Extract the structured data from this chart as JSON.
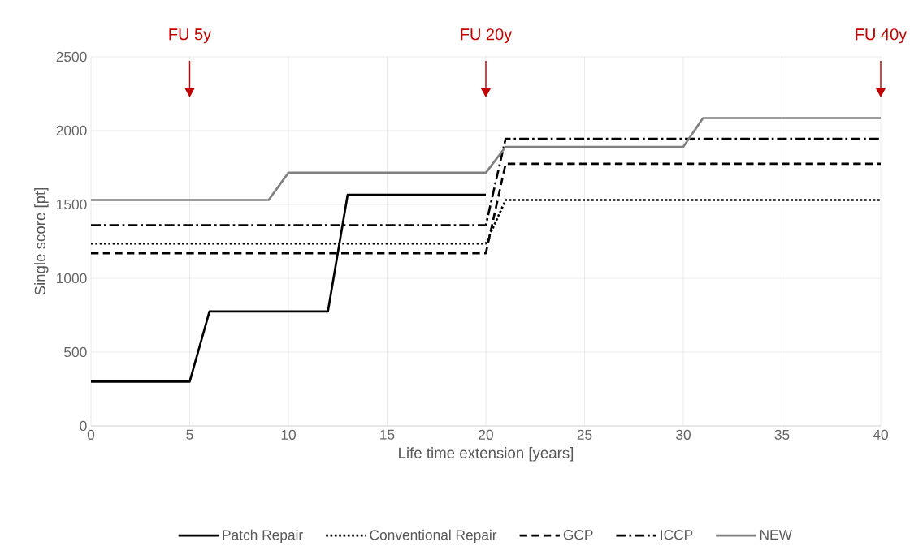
{
  "chart_data": {
    "type": "line",
    "xlabel": "Life time extension [years]",
    "ylabel": "Single score [pt]",
    "xlim": [
      0,
      40
    ],
    "ylim": [
      0,
      2500
    ],
    "xticks": [
      0,
      5,
      10,
      15,
      20,
      25,
      30,
      35,
      40
    ],
    "yticks": [
      0,
      500,
      1000,
      1500,
      2000,
      2500
    ],
    "grid": true,
    "legend": "bottom",
    "annotations": [
      "FU 5y",
      "FU 20y",
      "FU 40y"
    ],
    "series": [
      {
        "name": "Patch Repair",
        "color": "#000000",
        "line_style": "solid",
        "x": [
          0,
          5,
          6,
          12,
          13,
          20
        ],
        "values": [
          300,
          300,
          775,
          775,
          1565,
          1565
        ]
      },
      {
        "name": "Conventional Repair",
        "color": "#000000",
        "line_style": "dotted",
        "x": [
          0,
          20,
          21,
          40
        ],
        "values": [
          1235,
          1235,
          1530,
          1530
        ]
      },
      {
        "name": "GCP",
        "color": "#000000",
        "line_style": "dashed",
        "x": [
          0,
          20,
          21,
          40
        ],
        "values": [
          1170,
          1170,
          1775,
          1775
        ]
      },
      {
        "name": "ICCP",
        "color": "#000000",
        "line_style": "dashdot",
        "x": [
          0,
          20,
          21,
          40
        ],
        "values": [
          1360,
          1360,
          1945,
          1945
        ]
      },
      {
        "name": "NEW",
        "color": "#808080",
        "line_style": "solid",
        "x": [
          0,
          9,
          10,
          20,
          21,
          30,
          31,
          40
        ],
        "values": [
          1530,
          1530,
          1715,
          1715,
          1890,
          1890,
          2085,
          2085
        ]
      }
    ]
  }
}
